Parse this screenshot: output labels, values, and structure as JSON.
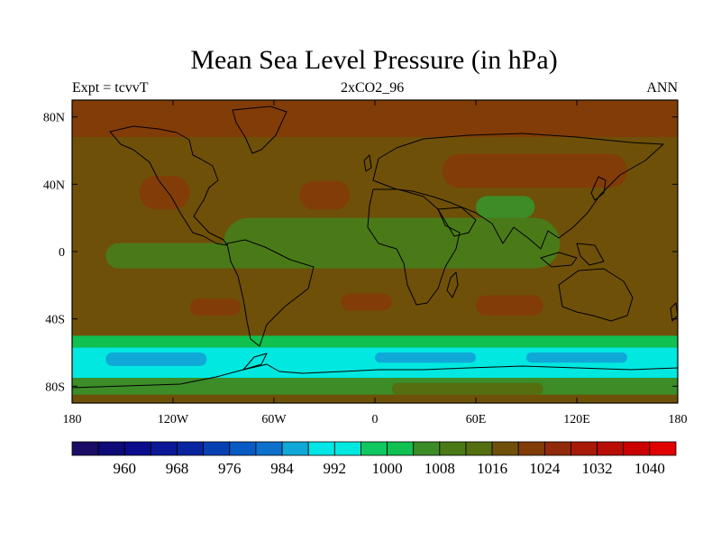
{
  "title": "Mean Sea Level Pressure (in hPa)",
  "subtitle_left": "Expt = tcvvT",
  "subtitle_center": "2xCO2_96",
  "subtitle_right": "ANN",
  "map": {
    "projection": "cylindrical-equidistant",
    "lon_range": [
      -180,
      180
    ],
    "lat_range": [
      -90,
      90
    ],
    "lon_ticks": [
      -180,
      -120,
      -60,
      0,
      60,
      120,
      180
    ],
    "lon_tick_labels": [
      "180",
      "120W",
      "60W",
      "0",
      "60E",
      "120E",
      "180"
    ],
    "lat_ticks": [
      80,
      40,
      0,
      -40,
      -80
    ],
    "lat_tick_labels": [
      "80N",
      "40N",
      "0",
      "40S",
      "80S"
    ],
    "background_level": 1016
  },
  "colorbar": {
    "orientation": "horizontal",
    "levels": [
      956,
      960,
      964,
      968,
      972,
      976,
      980,
      984,
      988,
      992,
      996,
      1000,
      1004,
      1008,
      1012,
      1016,
      1020,
      1024,
      1028,
      1032,
      1036,
      1040
    ],
    "colors": [
      "#1a0c64",
      "#0e0a78",
      "#0a0c8c",
      "#0a1896",
      "#0824a0",
      "#0840b4",
      "#0a5ac4",
      "#0c70cc",
      "#10a8d8",
      "#00e6e6",
      "#00e8e0",
      "#10c860",
      "#10c050",
      "#3c8c28",
      "#4a7a18",
      "#546e10",
      "#6e5008",
      "#823c08",
      "#902a08",
      "#a81a08",
      "#b80e06",
      "#cc0000",
      "#e00000"
    ],
    "labels": [
      "960",
      "968",
      "976",
      "984",
      "992",
      "1000",
      "1008",
      "1016",
      "1024",
      "1032",
      "1040"
    ],
    "label_values": [
      960,
      968,
      976,
      984,
      992,
      1000,
      1008,
      1016,
      1024,
      1032,
      1040
    ]
  },
  "chart_data": {
    "type": "heatmap",
    "title": "Mean Sea Level Pressure (in hPa)",
    "variable_unit": "hPa",
    "regions": [
      {
        "lon": [
          -180,
          180
        ],
        "lat": [
          68,
          90
        ],
        "value": 1022
      },
      {
        "lon": [
          -180,
          180
        ],
        "lat": [
          45,
          68
        ],
        "value": 1016
      },
      {
        "lon": [
          40,
          150
        ],
        "lat": [
          38,
          58
        ],
        "value": 1022
      },
      {
        "lon": [
          -140,
          -110
        ],
        "lat": [
          25,
          45
        ],
        "value": 1022
      },
      {
        "lon": [
          -45,
          -15
        ],
        "lat": [
          25,
          42
        ],
        "value": 1022
      },
      {
        "lon": [
          60,
          95
        ],
        "lat": [
          20,
          33
        ],
        "value": 1006
      },
      {
        "lon": [
          -90,
          110
        ],
        "lat": [
          -10,
          20
        ],
        "value": 1010
      },
      {
        "lon": [
          -160,
          -60
        ],
        "lat": [
          -10,
          5
        ],
        "value": 1010
      },
      {
        "lon": [
          -180,
          180
        ],
        "lat": [
          -50,
          -25
        ],
        "value": 1016
      },
      {
        "lon": [
          -110,
          -80
        ],
        "lat": [
          -38,
          -28
        ],
        "value": 1020
      },
      {
        "lon": [
          -20,
          10
        ],
        "lat": [
          -35,
          -25
        ],
        "value": 1020
      },
      {
        "lon": [
          60,
          100
        ],
        "lat": [
          -38,
          -26
        ],
        "value": 1020
      },
      {
        "lon": [
          -180,
          180
        ],
        "lat": [
          -57,
          -50
        ],
        "value": 1000
      },
      {
        "lon": [
          -180,
          180
        ],
        "lat": [
          -75,
          -57
        ],
        "value": 992
      },
      {
        "lon": [
          -160,
          -100
        ],
        "lat": [
          -68,
          -60
        ],
        "value": 984
      },
      {
        "lon": [
          0,
          60
        ],
        "lat": [
          -66,
          -60
        ],
        "value": 984
      },
      {
        "lon": [
          90,
          150
        ],
        "lat": [
          -66,
          -60
        ],
        "value": 984
      },
      {
        "lon": [
          -180,
          180
        ],
        "lat": [
          -85,
          -75
        ],
        "value": 1004
      },
      {
        "lon": [
          10,
          100
        ],
        "lat": [
          -85,
          -78
        ],
        "value": 1014
      }
    ]
  }
}
